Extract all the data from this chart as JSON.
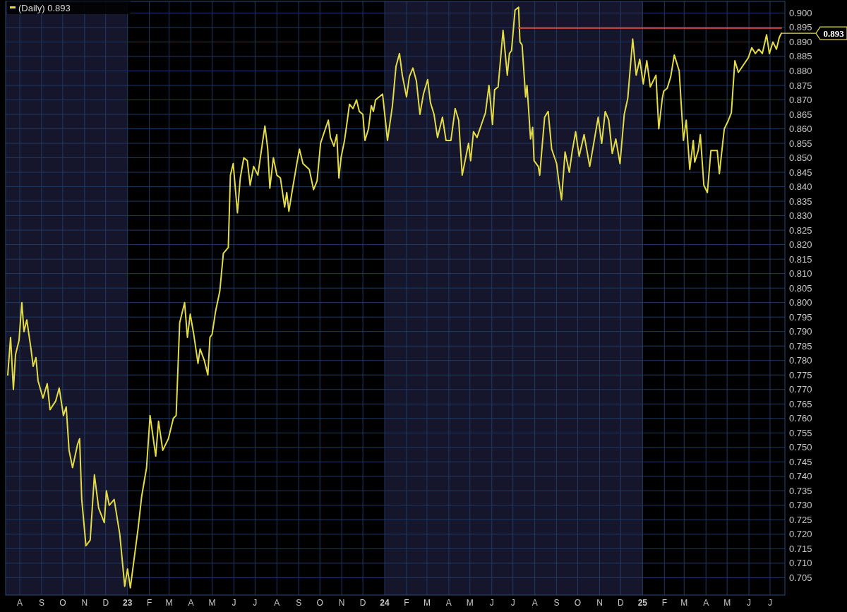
{
  "chart_data": {
    "type": "line",
    "xlim": [
      "2022-07-12",
      "2025-07-22"
    ],
    "xticks": [
      {
        "value": "2022-08-01",
        "label": "A"
      },
      {
        "value": "2022-09-01",
        "label": "S"
      },
      {
        "value": "2022-10-01",
        "label": "O"
      },
      {
        "value": "2022-11-01",
        "label": "N"
      },
      {
        "value": "2022-12-01",
        "label": "D"
      },
      {
        "value": "2023-01-01",
        "label": "23"
      },
      {
        "value": "2023-02-01",
        "label": "F"
      },
      {
        "value": "2023-03-01",
        "label": "M"
      },
      {
        "value": "2023-04-01",
        "label": "A"
      },
      {
        "value": "2023-05-01",
        "label": "M"
      },
      {
        "value": "2023-06-01",
        "label": "J"
      },
      {
        "value": "2023-07-01",
        "label": "J"
      },
      {
        "value": "2023-08-01",
        "label": "A"
      },
      {
        "value": "2023-09-01",
        "label": "S"
      },
      {
        "value": "2023-10-01",
        "label": "O"
      },
      {
        "value": "2023-11-01",
        "label": "N"
      },
      {
        "value": "2023-12-01",
        "label": "D"
      },
      {
        "value": "2024-01-01",
        "label": "24"
      },
      {
        "value": "2024-02-01",
        "label": "F"
      },
      {
        "value": "2024-03-01",
        "label": "M"
      },
      {
        "value": "2024-04-01",
        "label": "A"
      },
      {
        "value": "2024-05-01",
        "label": "M"
      },
      {
        "value": "2024-06-01",
        "label": "J"
      },
      {
        "value": "2024-07-01",
        "label": "J"
      },
      {
        "value": "2024-08-01",
        "label": "A"
      },
      {
        "value": "2024-09-01",
        "label": "S"
      },
      {
        "value": "2024-10-01",
        "label": "O"
      },
      {
        "value": "2024-11-01",
        "label": "N"
      },
      {
        "value": "2024-12-01",
        "label": "D"
      },
      {
        "value": "2025-01-01",
        "label": "25"
      },
      {
        "value": "2025-02-01",
        "label": "F"
      },
      {
        "value": "2025-03-01",
        "label": "M"
      },
      {
        "value": "2025-04-01",
        "label": "A"
      },
      {
        "value": "2025-05-01",
        "label": "M"
      },
      {
        "value": "2025-06-01",
        "label": "J"
      },
      {
        "value": "2025-07-01",
        "label": "J"
      }
    ],
    "ylim": [
      0.699,
      0.904
    ],
    "yticks": [
      0.705,
      {
        "value": 0.71,
        "label": "0.710"
      },
      0.715,
      {
        "value": 0.72,
        "label": "0.720"
      },
      0.725,
      {
        "value": 0.73,
        "label": "0.730"
      },
      0.735,
      {
        "value": 0.74,
        "label": "0.740"
      },
      0.745,
      {
        "value": 0.75,
        "label": "0.750"
      },
      0.755,
      {
        "value": 0.76,
        "label": "0.760"
      },
      0.765,
      {
        "value": 0.77,
        "label": "0.770"
      },
      0.775,
      {
        "value": 0.78,
        "label": "0.780"
      },
      0.785,
      {
        "value": 0.79,
        "label": "0.790"
      },
      0.795,
      {
        "value": 0.8,
        "label": "0.800"
      },
      0.805,
      {
        "value": 0.81,
        "label": "0.810"
      },
      0.815,
      {
        "value": 0.82,
        "label": "0.820"
      },
      0.825,
      {
        "value": 0.83,
        "label": "0.830"
      },
      0.835,
      {
        "value": 0.84,
        "label": "0.840"
      },
      0.845,
      {
        "value": 0.85,
        "label": "0.850"
      },
      0.855,
      {
        "value": 0.86,
        "label": "0.860"
      },
      0.865,
      {
        "value": 0.87,
        "label": "0.870"
      },
      0.875,
      {
        "value": 0.88,
        "label": "0.880"
      },
      0.885,
      {
        "value": 0.89,
        "label": "0.890"
      },
      0.895,
      {
        "value": 0.9,
        "label": "0.900"
      }
    ],
    "grid": true,
    "legend": "top left",
    "bands": [
      {
        "axis": "x",
        "from": "2022-07-12",
        "to": "2023-01-01",
        "color": "#15152b"
      },
      {
        "axis": "x",
        "from": "2024-01-01",
        "to": "2025-01-01",
        "color": "#15152b"
      }
    ],
    "annotations": [
      {
        "text": "0.893",
        "x": "2025-07-17",
        "y": 0.893
      }
    ],
    "series": [
      {
        "name": "(Daily) 0.893",
        "color": "#e3dc45",
        "x": [
          "2022-07-15",
          "2022-07-19",
          "2022-07-23",
          "2022-07-26",
          "2022-07-31",
          "2022-08-04",
          "2022-08-07",
          "2022-08-11",
          "2022-08-17",
          "2022-08-20",
          "2022-08-24",
          "2022-08-27",
          "2022-09-03",
          "2022-09-09",
          "2022-09-13",
          "2022-09-21",
          "2022-09-26",
          "2022-10-02",
          "2022-10-06",
          "2022-10-10",
          "2022-10-15",
          "2022-10-22",
          "2022-10-25",
          "2022-10-28",
          "2022-11-03",
          "2022-11-09",
          "2022-11-15",
          "2022-11-21",
          "2022-11-29",
          "2022-12-02",
          "2022-12-06",
          "2022-12-13",
          "2022-12-21",
          "2022-12-28",
          "2023-01-01",
          "2023-01-05",
          "2023-01-16",
          "2023-01-21",
          "2023-01-28",
          "2023-02-02",
          "2023-02-06",
          "2023-02-10",
          "2023-02-14",
          "2023-02-20",
          "2023-02-28",
          "2023-03-07",
          "2023-03-11",
          "2023-03-16",
          "2023-03-23",
          "2023-03-27",
          "2023-03-31",
          "2023-04-05",
          "2023-04-11",
          "2023-04-14",
          "2023-04-20",
          "2023-04-25",
          "2023-04-28",
          "2023-05-01",
          "2023-05-06",
          "2023-05-12",
          "2023-05-17",
          "2023-05-24",
          "2023-05-27",
          "2023-05-31",
          "2023-06-06",
          "2023-06-10",
          "2023-06-15",
          "2023-06-20",
          "2023-06-24",
          "2023-06-29",
          "2023-07-05",
          "2023-07-12",
          "2023-07-15",
          "2023-07-19",
          "2023-07-22",
          "2023-07-27",
          "2023-08-01",
          "2023-08-06",
          "2023-08-12",
          "2023-08-15",
          "2023-08-18",
          "2023-08-23",
          "2023-08-30",
          "2023-09-02",
          "2023-09-07",
          "2023-09-16",
          "2023-09-22",
          "2023-09-27",
          "2023-10-02",
          "2023-10-06",
          "2023-10-13",
          "2023-10-16",
          "2023-10-21",
          "2023-10-25",
          "2023-10-28",
          "2023-10-31",
          "2023-11-05",
          "2023-11-09",
          "2023-11-12",
          "2023-11-17",
          "2023-11-22",
          "2023-11-26",
          "2023-12-01",
          "2023-12-04",
          "2023-12-09",
          "2023-12-13",
          "2023-12-16",
          "2023-12-19",
          "2023-12-29",
          "2024-01-05",
          "2024-01-12",
          "2024-01-17",
          "2024-01-22",
          "2024-01-26",
          "2024-02-01",
          "2024-02-05",
          "2024-02-10",
          "2024-02-15",
          "2024-02-20",
          "2024-02-25",
          "2024-03-02",
          "2024-03-06",
          "2024-03-11",
          "2024-03-16",
          "2024-03-23",
          "2024-03-28",
          "2024-04-04",
          "2024-04-10",
          "2024-04-15",
          "2024-04-20",
          "2024-04-29",
          "2024-05-02",
          "2024-05-06",
          "2024-05-11",
          "2024-05-18",
          "2024-05-23",
          "2024-05-28",
          "2024-06-02",
          "2024-06-05",
          "2024-06-10",
          "2024-06-17",
          "2024-06-23",
          "2024-06-26",
          "2024-06-29",
          "2024-07-04",
          "2024-07-09",
          "2024-07-11",
          "2024-07-14",
          "2024-07-19",
          "2024-07-21",
          "2024-07-26",
          "2024-07-29",
          "2024-07-31",
          "2024-08-06",
          "2024-08-08",
          "2024-08-15",
          "2024-08-20",
          "2024-08-25",
          "2024-09-01",
          "2024-09-04",
          "2024-09-08",
          "2024-09-13",
          "2024-09-19",
          "2024-09-23",
          "2024-09-28",
          "2024-10-03",
          "2024-10-10",
          "2024-10-18",
          "2024-10-23",
          "2024-10-30",
          "2024-11-04",
          "2024-11-09",
          "2024-11-14",
          "2024-11-19",
          "2024-11-24",
          "2024-11-30",
          "2024-12-06",
          "2024-12-11",
          "2024-12-13",
          "2024-12-18",
          "2024-12-23",
          "2024-12-28",
          "2025-01-02",
          "2025-01-07",
          "2025-01-12",
          "2025-01-20",
          "2025-01-24",
          "2025-01-29",
          "2025-01-31",
          "2025-02-05",
          "2025-02-10",
          "2025-02-15",
          "2025-02-22",
          "2025-02-25",
          "2025-02-28",
          "2025-03-04",
          "2025-03-09",
          "2025-03-14",
          "2025-03-16",
          "2025-03-21",
          "2025-03-24",
          "2025-03-29",
          "2025-04-03",
          "2025-04-08",
          "2025-04-13",
          "2025-04-17",
          "2025-04-20",
          "2025-04-27",
          "2025-05-02",
          "2025-05-07",
          "2025-05-12",
          "2025-05-17",
          "2025-05-24",
          "2025-05-31",
          "2025-06-05",
          "2025-06-10",
          "2025-06-15",
          "2025-06-20",
          "2025-06-26",
          "2025-06-30",
          "2025-07-05",
          "2025-07-10",
          "2025-07-14",
          "2025-07-17"
        ],
        "values": [
          0.775,
          0.788,
          0.77,
          0.782,
          0.787,
          0.8,
          0.79,
          0.794,
          0.784,
          0.778,
          0.781,
          0.773,
          0.767,
          0.772,
          0.763,
          0.766,
          0.7705,
          0.761,
          0.764,
          0.749,
          0.743,
          0.751,
          0.753,
          0.732,
          0.716,
          0.718,
          0.7405,
          0.729,
          0.724,
          0.735,
          0.73,
          0.732,
          0.72,
          0.702,
          0.708,
          0.7015,
          0.722,
          0.733,
          0.743,
          0.761,
          0.754,
          0.747,
          0.759,
          0.749,
          0.753,
          0.76,
          0.761,
          0.793,
          0.8,
          0.788,
          0.796,
          0.789,
          0.779,
          0.784,
          0.78,
          0.775,
          0.788,
          0.789,
          0.797,
          0.804,
          0.817,
          0.819,
          0.844,
          0.848,
          0.831,
          0.843,
          0.85,
          0.849,
          0.8405,
          0.847,
          0.844,
          0.856,
          0.861,
          0.853,
          0.8395,
          0.85,
          0.844,
          0.843,
          0.833,
          0.838,
          0.8315,
          0.839,
          0.849,
          0.853,
          0.848,
          0.846,
          0.839,
          0.842,
          0.855,
          0.858,
          0.863,
          0.857,
          0.854,
          0.858,
          0.843,
          0.85,
          0.856,
          0.863,
          0.8685,
          0.867,
          0.87,
          0.866,
          0.865,
          0.856,
          0.86,
          0.868,
          0.866,
          0.87,
          0.872,
          0.856,
          0.868,
          0.8815,
          0.886,
          0.8785,
          0.871,
          0.878,
          0.881,
          0.8765,
          0.865,
          0.872,
          0.877,
          0.869,
          0.865,
          0.857,
          0.864,
          0.856,
          0.856,
          0.867,
          0.863,
          0.844,
          0.855,
          0.849,
          0.859,
          0.857,
          0.862,
          0.8655,
          0.875,
          0.8615,
          0.8735,
          0.8745,
          0.894,
          0.8785,
          0.886,
          0.887,
          0.901,
          0.902,
          0.89,
          0.889,
          0.871,
          0.875,
          0.8565,
          0.8605,
          0.849,
          0.847,
          0.844,
          0.864,
          0.866,
          0.853,
          0.848,
          0.842,
          0.8355,
          0.852,
          0.845,
          0.852,
          0.859,
          0.8505,
          0.858,
          0.847,
          0.854,
          0.864,
          0.855,
          0.866,
          0.863,
          0.8515,
          0.8565,
          0.848,
          0.865,
          0.8705,
          0.8765,
          0.891,
          0.8785,
          0.884,
          0.8755,
          0.8835,
          0.8745,
          0.8785,
          0.86,
          0.8705,
          0.873,
          0.874,
          0.878,
          0.8855,
          0.88,
          0.868,
          0.856,
          0.863,
          0.846,
          0.856,
          0.8485,
          0.8525,
          0.858,
          0.8405,
          0.838,
          0.8525,
          0.8525,
          0.8525,
          0.8445,
          0.86,
          0.8625,
          0.8655,
          0.8835,
          0.8795,
          0.882,
          0.8845,
          0.888,
          0.886,
          0.8875,
          0.886,
          0.8925,
          0.886,
          0.89,
          0.8875,
          0.8915,
          0.893
        ]
      },
      {
        "color": "#e8453a",
        "x": [
          "2024-07-09",
          "2025-07-17"
        ],
        "values": [
          0.8948,
          0.8948
        ]
      }
    ]
  }
}
